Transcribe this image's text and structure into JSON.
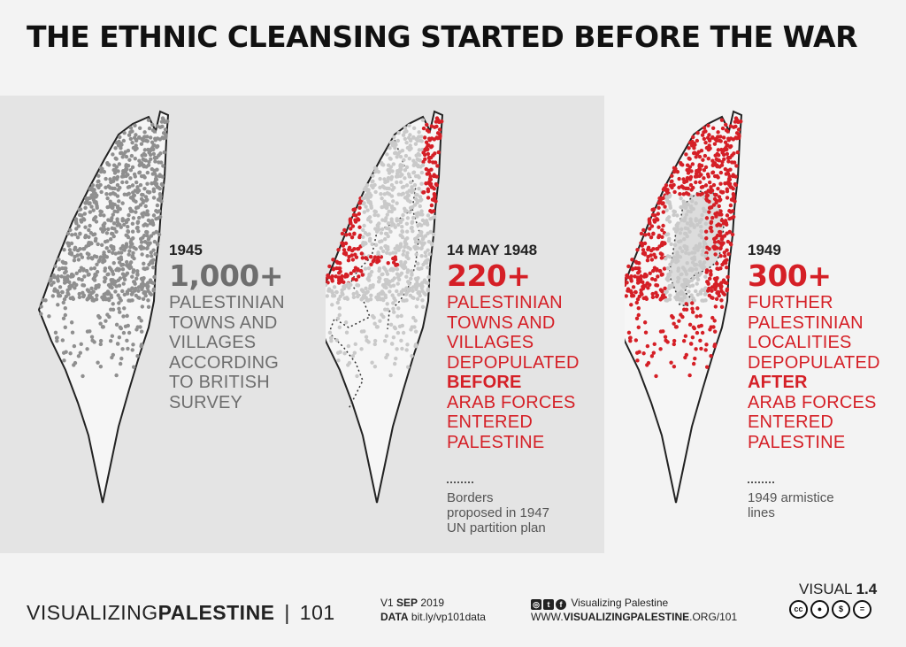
{
  "title": "THE ETHNIC CLEANSING STARTED BEFORE THE WAR",
  "colors": {
    "red": "#d51f26",
    "grey_dot": "#8f8f8f",
    "light_dot": "#c9c9c9",
    "band": "#e4e4e4"
  },
  "panels": [
    {
      "year": "1945",
      "number": "1,000+",
      "lines": [
        "PALESTINIAN",
        "TOWNS AND",
        "VILLAGES",
        "ACCORDING",
        "TO BRITISH",
        "SURVEY"
      ]
    },
    {
      "year": "14 MAY 1948",
      "number": "220+",
      "lines": [
        "PALESTINIAN",
        "TOWNS AND",
        "VILLAGES",
        "DEPOPULATED"
      ],
      "emph": "BEFORE",
      "lines2": [
        "ARAB FORCES",
        "ENTERED",
        "PALESTINE"
      ],
      "legend": [
        "Borders",
        "proposed in 1947",
        "UN partition plan"
      ]
    },
    {
      "year": "1949",
      "number": "300+",
      "lines": [
        "FURTHER",
        "PALESTINIAN",
        "LOCALITIES",
        "DEPOPULATED"
      ],
      "emph": "AFTER",
      "lines2": [
        "ARAB FORCES",
        "ENTERED",
        "PALESTINE"
      ],
      "legend": [
        "1949 armistice",
        "lines"
      ]
    }
  ],
  "footer": {
    "brand_light": "VISUALIZING",
    "brand_bold": "PALESTINE",
    "brand_sep": "|",
    "brand_num": "101",
    "version_prefix": "V1",
    "version_month": "SEP",
    "version_year": "2019",
    "data_label": "DATA",
    "data_link": "bit.ly/vp101data",
    "social_name": "Visualizing Palestine",
    "site_prefix": "WWW.",
    "site_bold": "VISUALIZINGPALESTINE",
    "site_suffix": ".ORG/101",
    "visual_label": "VISUAL",
    "visual_num": "1.4",
    "cc_icons": [
      "cc-icon",
      "by-icon",
      "nc-icon",
      "nd-icon"
    ]
  }
}
